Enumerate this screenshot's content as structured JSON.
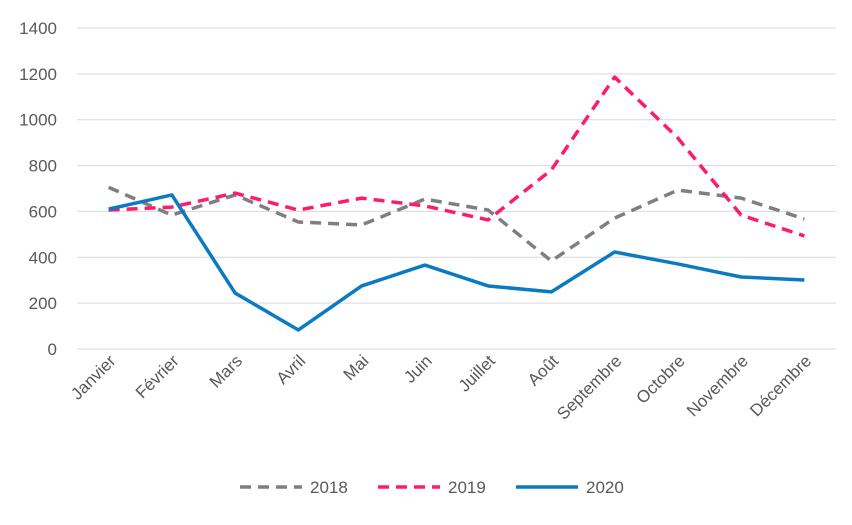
{
  "chart_data": {
    "type": "line",
    "title": "",
    "xlabel": "",
    "ylabel": "",
    "ylim": [
      0,
      1400
    ],
    "yticks": [
      0,
      200,
      400,
      600,
      800,
      1000,
      1200,
      1400
    ],
    "grid": true,
    "legend_position": "bottom",
    "categories": [
      "Janvier",
      "Février",
      "Mars",
      "Avril",
      "Mai",
      "Juin",
      "Juillet",
      "Août",
      "Septembre",
      "Octobre",
      "Novembre",
      "Décembre"
    ],
    "series": [
      {
        "name": "2018",
        "color": "#7f7f7f",
        "style": "dashed",
        "values": [
          705,
          584,
          672,
          554,
          541,
          654,
          606,
          384,
          571,
          693,
          658,
          567
        ]
      },
      {
        "name": "2019",
        "color": "#ff1a6e",
        "style": "dashed",
        "values": [
          606,
          619,
          680,
          606,
          658,
          624,
          563,
          781,
          1186,
          920,
          584,
          493
        ]
      },
      {
        "name": "2020",
        "color": "#0a7bc2",
        "style": "solid",
        "values": [
          610,
          672,
          244,
          83,
          275,
          366,
          275,
          249,
          423,
          371,
          314,
          301
        ]
      }
    ]
  }
}
